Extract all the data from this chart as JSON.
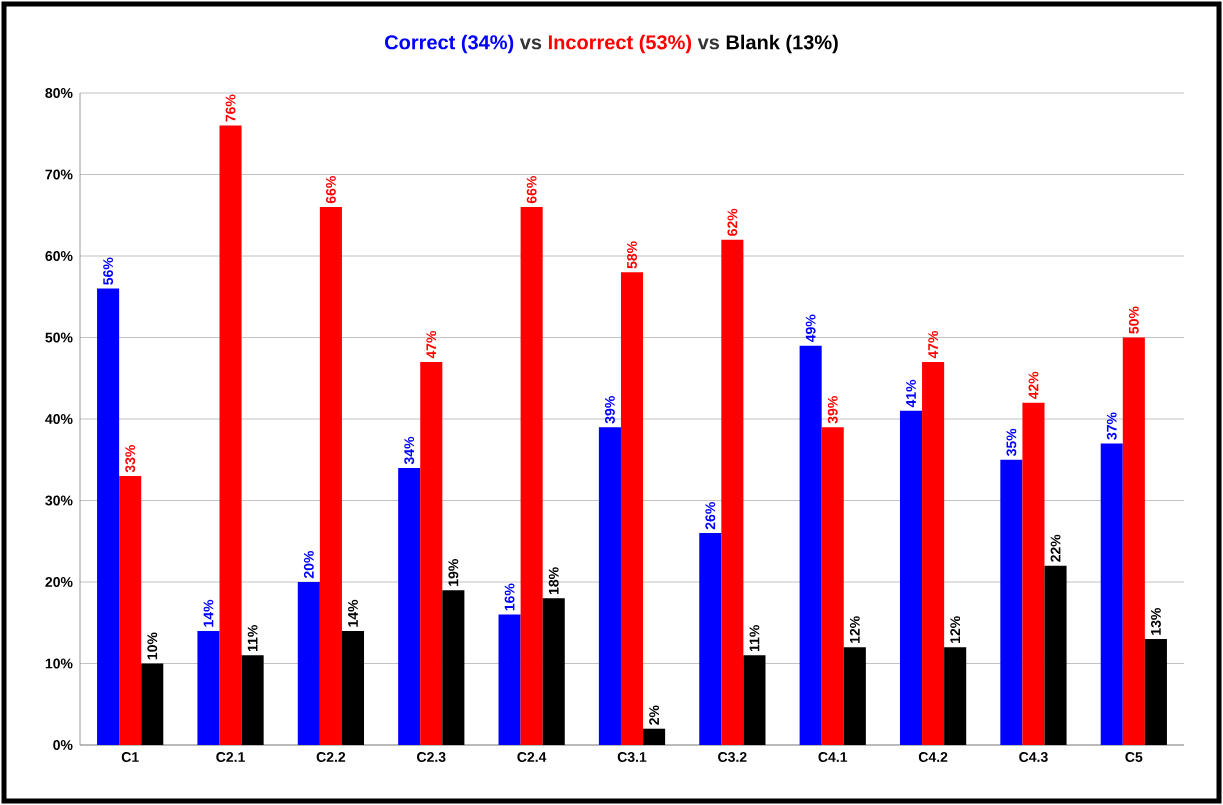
{
  "chart_data": {
    "type": "bar",
    "categories": [
      "C1",
      "C2.1",
      "C2.2",
      "C2.3",
      "C2.4",
      "C3.1",
      "C3.2",
      "C4.1",
      "C4.2",
      "C4.3",
      "C5"
    ],
    "series": [
      {
        "name": "Correct (34%)",
        "color": "#0000ff",
        "values": [
          56,
          14,
          20,
          34,
          16,
          39,
          26,
          49,
          41,
          35,
          37
        ]
      },
      {
        "name": "Incorrect (53%)",
        "color": "#ff0000",
        "values": [
          33,
          76,
          66,
          47,
          66,
          58,
          62,
          39,
          47,
          42,
          50
        ]
      },
      {
        "name": "Blank (13%)",
        "color": "#000000",
        "values": [
          10,
          11,
          14,
          19,
          18,
          2,
          11,
          12,
          12,
          22,
          13
        ]
      }
    ],
    "annotations": [
      "vs",
      "vs"
    ],
    "ylim": [
      0,
      80
    ],
    "yticks": [
      {
        "value": 0,
        "label": "0%"
      },
      {
        "value": 10,
        "label": "10%"
      },
      {
        "value": 20,
        "label": "20%"
      },
      {
        "value": 30,
        "label": "30%"
      },
      {
        "value": 40,
        "label": "40%"
      },
      {
        "value": 50,
        "label": "50%"
      },
      {
        "value": 60,
        "label": "60%"
      },
      {
        "value": 70,
        "label": "70%"
      },
      {
        "value": 80,
        "label": "80%"
      }
    ],
    "value_labels": [
      [
        "56%",
        "14%",
        "20%",
        "34%",
        "16%",
        "39%",
        "26%",
        "49%",
        "41%",
        "35%",
        "37%"
      ],
      [
        "33%",
        "76%",
        "66%",
        "47%",
        "66%",
        "58%",
        "62%",
        "39%",
        "47%",
        "42%",
        "50%"
      ],
      [
        "10%",
        "11%",
        "14%",
        "19%",
        "18%",
        "2%",
        "11%",
        "12%",
        "12%",
        "22%",
        "13%"
      ]
    ],
    "grid": "y",
    "legend": "top"
  }
}
